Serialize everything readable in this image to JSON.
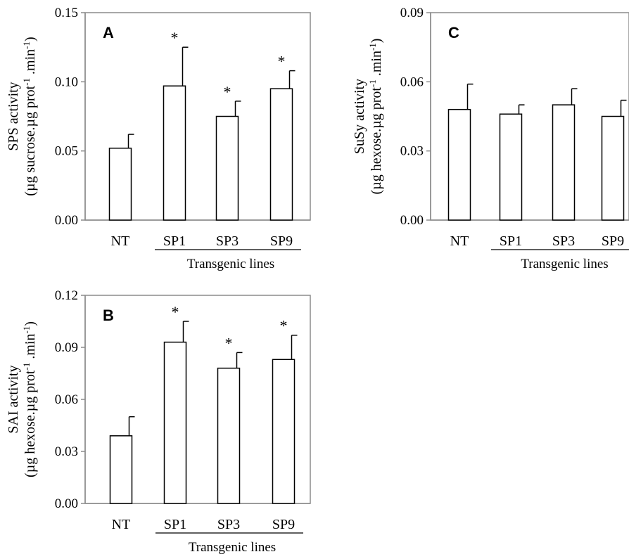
{
  "chart_data": [
    {
      "panel": "A",
      "type": "bar",
      "ylabel_line1": "SPS activity",
      "ylabel_line2_main": "(µg sucrose.µg prot",
      "ylabel_line2_sup1": "-1",
      "ylabel_line2_mid": " .min",
      "ylabel_line2_sup2": "-1",
      "ylabel_line2_end": ")",
      "group_label": "Transgenic lines",
      "categories": [
        "NT",
        "SP1",
        "SP3",
        "SP9"
      ],
      "values": [
        0.052,
        0.097,
        0.075,
        0.095
      ],
      "errors": [
        0.01,
        0.028,
        0.011,
        0.013
      ],
      "significance": [
        "",
        "*",
        "*",
        "*"
      ],
      "ylim": [
        0,
        0.15
      ],
      "yticks": [
        "0.00",
        "0.05",
        "0.10",
        "0.15"
      ]
    },
    {
      "panel": "C",
      "type": "bar",
      "ylabel_line1": "SuSy activity",
      "ylabel_line2_main": "(µg hexose.µg prot",
      "ylabel_line2_sup1": "-1",
      "ylabel_line2_mid": " .min",
      "ylabel_line2_sup2": "-1",
      "ylabel_line2_end": ")",
      "group_label": "Transgenic lines",
      "categories": [
        "NT",
        "SP1",
        "SP3",
        "SP9"
      ],
      "values": [
        0.048,
        0.046,
        0.05,
        0.045
      ],
      "errors": [
        0.011,
        0.004,
        0.007,
        0.007
      ],
      "significance": [
        "",
        "",
        "",
        ""
      ],
      "ylim": [
        0,
        0.09
      ],
      "yticks": [
        "0.00",
        "0.03",
        "0.06",
        "0.09"
      ]
    },
    {
      "panel": "B",
      "type": "bar",
      "ylabel_line1": "SAI activity",
      "ylabel_line2_main": "(µg hexose.µg prot",
      "ylabel_line2_sup1": "-1",
      "ylabel_line2_mid": " .min",
      "ylabel_line2_sup2": "-1",
      "ylabel_line2_end": ")",
      "group_label": "Transgenic lines",
      "categories": [
        "NT",
        "SP1",
        "SP3",
        "SP9"
      ],
      "values": [
        0.039,
        0.093,
        0.078,
        0.083
      ],
      "errors": [
        0.011,
        0.012,
        0.009,
        0.014
      ],
      "significance": [
        "",
        "*",
        "*",
        "*"
      ],
      "ylim": [
        0,
        0.12
      ],
      "yticks": [
        "0.00",
        "0.03",
        "0.06",
        "0.09",
        "0.12"
      ]
    }
  ]
}
